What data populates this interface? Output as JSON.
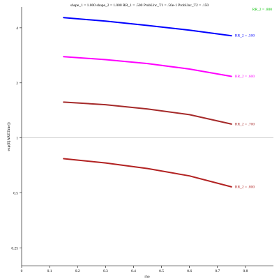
{
  "chart_data": {
    "type": "line",
    "title": "shape_1 = 1.000  shape_2 = 1.000  RR_1 = .500  ProbUnc_T1 = .50e-1  ProbUnc_T2 = .150",
    "xlabel": "rho",
    "ylabel": "exp(E[ARETime])",
    "xlim": [
      0,
      0.9
    ],
    "ylim": [
      0.2,
      5.2
    ],
    "y_scale": "log",
    "grid": false,
    "reference_line_y": 1,
    "x_ticks": [
      {
        "value": 0,
        "label": "0"
      },
      {
        "value": 0.1,
        "label": "0.1"
      },
      {
        "value": 0.2,
        "label": "0.2"
      },
      {
        "value": 0.3,
        "label": "0.3"
      },
      {
        "value": 0.4,
        "label": "0.4"
      },
      {
        "value": 0.5,
        "label": "0.5"
      },
      {
        "value": 0.6,
        "label": "0.6"
      },
      {
        "value": 0.7,
        "label": "0.7"
      },
      {
        "value": 0.8,
        "label": "0.8"
      }
    ],
    "y_ticks": [
      {
        "value": 0.25,
        "label": "0.25"
      },
      {
        "value": 0.5,
        "label": "0.5"
      },
      {
        "value": 1,
        "label": "1"
      },
      {
        "value": 2,
        "label": "2"
      },
      {
        "value": 4,
        "label": "4"
      }
    ],
    "series": [
      {
        "name": "RR_2 = .500",
        "color": "#0000ff",
        "x": [
          0.15,
          0.3,
          0.45,
          0.6,
          0.75
        ],
        "y": [
          4.55,
          4.35,
          4.12,
          3.88,
          3.62
        ]
      },
      {
        "name": "RR_2 = .600",
        "color": "#ff00ff",
        "x": [
          0.15,
          0.3,
          0.45,
          0.6,
          0.75
        ],
        "y": [
          2.78,
          2.68,
          2.55,
          2.38,
          2.17
        ]
      },
      {
        "name": "RR_2 = .700",
        "color": "#a52a2a",
        "x": [
          0.15,
          0.3,
          0.45,
          0.6,
          0.75
        ],
        "y": [
          1.57,
          1.52,
          1.44,
          1.34,
          1.19
        ]
      },
      {
        "name": "RR_2 = .800",
        "color": "#b22222",
        "x": [
          0.15,
          0.3,
          0.45,
          0.6,
          0.75
        ],
        "y": [
          0.77,
          0.73,
          0.68,
          0.62,
          0.54
        ]
      }
    ],
    "extra_legend": [
      {
        "name": "RR_2 = .800",
        "color": "#00c000"
      }
    ]
  }
}
